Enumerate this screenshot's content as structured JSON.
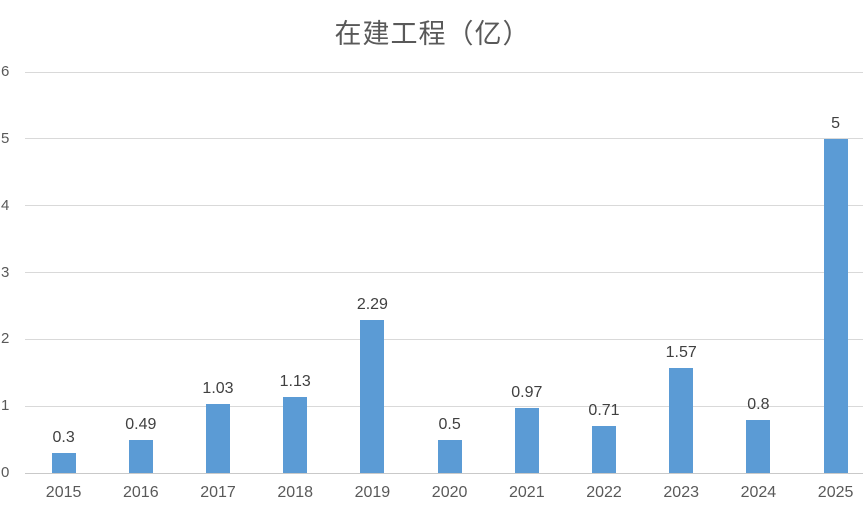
{
  "chart_data": {
    "type": "bar",
    "title": "在建工程（亿）",
    "categories": [
      "2015",
      "2016",
      "2017",
      "2018",
      "2019",
      "2020",
      "2021",
      "2022",
      "2023",
      "2024",
      "2025"
    ],
    "values": [
      0.3,
      0.49,
      1.03,
      1.13,
      2.29,
      0.5,
      0.97,
      0.71,
      1.57,
      0.8,
      5
    ],
    "data_labels": [
      "0.3",
      "0.49",
      "1.03",
      "1.13",
      "2.29",
      "0.5",
      "0.97",
      "0.71",
      "1.57",
      "0.8",
      "5"
    ],
    "xlabel": "",
    "ylabel": "",
    "ylim": [
      0,
      6
    ],
    "yticks": [
      0,
      1,
      2,
      3,
      4,
      5,
      6
    ],
    "grid": true,
    "legend_position": "none",
    "colors": {
      "bar": "#5b9bd5",
      "gridline": "#d9d9d9",
      "axis_line": "#c9c9c9",
      "axis_labels": "#595959",
      "data_labels": "#404040",
      "title": "#595959",
      "background": "#ffffff"
    }
  }
}
